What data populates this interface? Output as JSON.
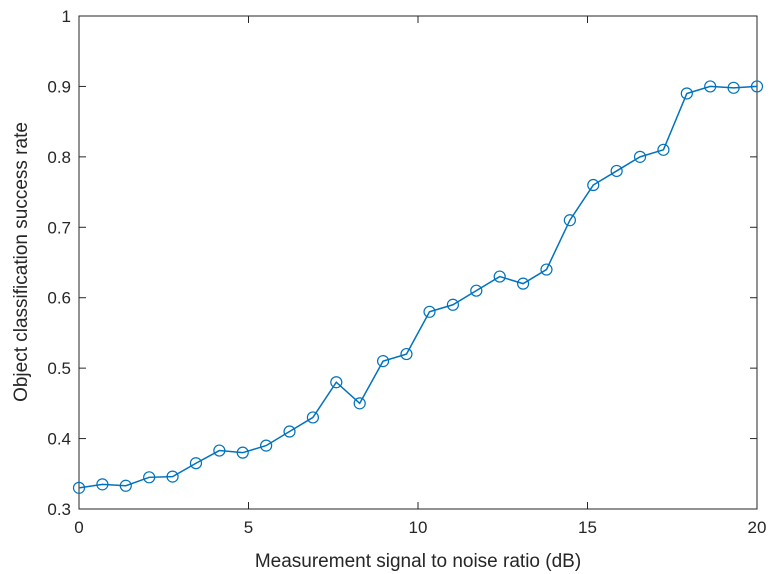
{
  "chart_data": {
    "type": "line",
    "title": "",
    "xlabel": "Measurement signal to noise ratio (dB)",
    "ylabel": "Object classification success rate",
    "xlim": [
      0,
      20
    ],
    "ylim": [
      0.3,
      1
    ],
    "xticks": [
      0,
      5,
      10,
      15,
      20
    ],
    "xtick_labels": [
      "0",
      "5",
      "10",
      "15",
      "20"
    ],
    "yticks": [
      0.3,
      0.4,
      0.5,
      0.6,
      0.7,
      0.8,
      0.9,
      1
    ],
    "ytick_labels": [
      "0.3",
      "0.4",
      "0.5",
      "0.6",
      "0.7",
      "0.8",
      "0.9",
      "1"
    ],
    "grid": false,
    "legend": "none",
    "marker": "circle",
    "line_color": "#0072BD",
    "series": [
      {
        "x": [
          0,
          0.69,
          1.38,
          2.07,
          2.76,
          3.45,
          4.14,
          4.83,
          5.52,
          6.21,
          6.9,
          7.59,
          8.28,
          8.97,
          9.66,
          10.34,
          11.03,
          11.72,
          12.41,
          13.1,
          13.79,
          14.48,
          15.17,
          15.86,
          16.55,
          17.24,
          17.93,
          18.62,
          19.31,
          20
        ],
        "values": [
          0.33,
          0.335,
          0.333,
          0.345,
          0.346,
          0.365,
          0.383,
          0.38,
          0.39,
          0.41,
          0.43,
          0.48,
          0.45,
          0.51,
          0.52,
          0.58,
          0.59,
          0.61,
          0.63,
          0.62,
          0.64,
          0.71,
          0.76,
          0.78,
          0.8,
          0.81,
          0.89,
          0.9,
          0.898,
          0.9
        ]
      }
    ]
  }
}
